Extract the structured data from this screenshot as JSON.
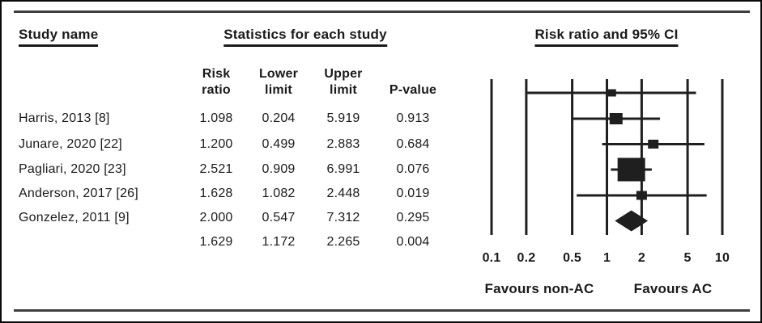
{
  "headers": {
    "study_name": "Study name",
    "statistics": "Statistics for each study",
    "plot": "Risk ratio and 95% CI"
  },
  "columns": [
    {
      "lines": [
        "Risk",
        "ratio"
      ]
    },
    {
      "lines": [
        "Lower",
        "limit"
      ]
    },
    {
      "lines": [
        "Upper",
        "limit"
      ]
    },
    {
      "lines": [
        "P-value"
      ]
    }
  ],
  "rows": [
    {
      "study": "Harris, 2013 [8]",
      "risk_ratio": "1.098",
      "lower": "0.204",
      "upper": "5.919",
      "p": "0.913"
    },
    {
      "study": "Junare, 2020 [22]",
      "risk_ratio": "1.200",
      "lower": "0.499",
      "upper": "2.883",
      "p": "0.684"
    },
    {
      "study": "Pagliari, 2020 [23]",
      "risk_ratio": "2.521",
      "lower": "0.909",
      "upper": "6.991",
      "p": "0.076"
    },
    {
      "study": "Anderson, 2017 [26]",
      "risk_ratio": "1.628",
      "lower": "1.082",
      "upper": "2.448",
      "p": "0.019"
    },
    {
      "study": "Gonzelez, 2011 [9]",
      "risk_ratio": "2.000",
      "lower": "0.547",
      "upper": "7.312",
      "p": "0.295"
    }
  ],
  "summary_row": {
    "risk_ratio": "1.629",
    "lower": "1.172",
    "upper": "2.265",
    "p": "0.004"
  },
  "chart_data": {
    "type": "scatter",
    "subtype": "forest-plot",
    "title": "Risk ratio and 95% CI",
    "x_scale": "log",
    "xlim": [
      0.1,
      10
    ],
    "x_ticks": [
      "0.1",
      "0.2",
      "0.5",
      "1",
      "2",
      "5",
      "10"
    ],
    "x_tick_values": [
      0.1,
      0.2,
      0.5,
      1,
      2,
      5,
      10
    ],
    "grid": "vertical-lines-at-ticks",
    "studies": [
      {
        "name": "Harris, 2013 [8]",
        "rr": 1.098,
        "ci_low": 0.204,
        "ci_high": 5.919,
        "p": 0.913,
        "marker_size": 11
      },
      {
        "name": "Junare, 2020 [22]",
        "rr": 1.2,
        "ci_low": 0.499,
        "ci_high": 2.883,
        "p": 0.684,
        "marker_size": 16
      },
      {
        "name": "Pagliari, 2020 [23]",
        "rr": 2.521,
        "ci_low": 0.909,
        "ci_high": 6.991,
        "p": 0.076,
        "marker_size": 13
      },
      {
        "name": "Anderson, 2017 [26]",
        "rr": 1.628,
        "ci_low": 1.082,
        "ci_high": 2.448,
        "p": 0.019,
        "marker_size": 34
      },
      {
        "name": "Gonzelez, 2011 [9]",
        "rr": 2.0,
        "ci_low": 0.547,
        "ci_high": 7.312,
        "p": 0.295,
        "marker_size": 13
      }
    ],
    "summary": {
      "rr": 1.629,
      "ci_low": 1.172,
      "ci_high": 2.265,
      "p": 0.004,
      "marker": "diamond"
    },
    "footer_left": "Favours non-AC",
    "footer_right": "Favours AC",
    "ink_color": "#1f1f1f"
  }
}
